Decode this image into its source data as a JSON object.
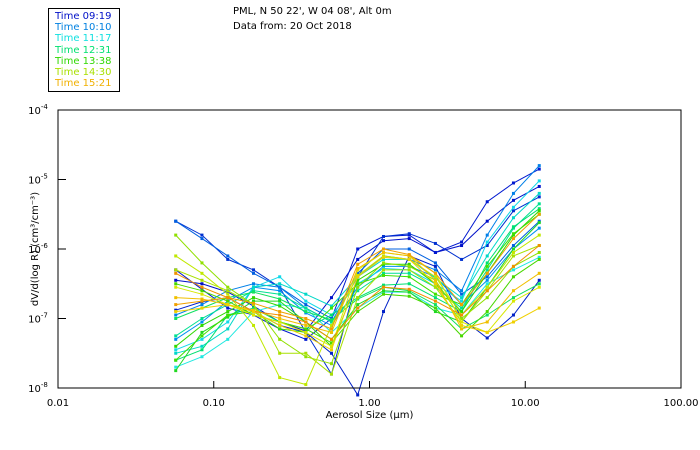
{
  "header": {
    "line1": "PML, N 50 22', W 04 08', Alt 0m",
    "line2": "Data from: 20 Oct 2018"
  },
  "legend": [
    {
      "label": "Time 09:19",
      "color": "#0010c8"
    },
    {
      "label": "Time 10:10",
      "color": "#0080e0"
    },
    {
      "label": "Time 11:17",
      "color": "#10e0e0"
    },
    {
      "label": "Time 12:31",
      "color": "#00e070"
    },
    {
      "label": "Time 13:38",
      "color": "#30d800"
    },
    {
      "label": "Time 14:30",
      "color": "#a8e000"
    },
    {
      "label": "Time 15:21",
      "color": "#f0b000"
    }
  ],
  "chart_data": {
    "type": "line",
    "title": "PML, N 50 22', W 04 08', Alt 0m",
    "subtitle": "Data from: 20 Oct 2018",
    "xlabel": "Aerosol Size (µm)",
    "ylabel": "dV/d(log R) (cm³/cm⁻³)",
    "xscale": "log",
    "yscale": "log",
    "xlim": [
      0.01,
      100
    ],
    "ylim": [
      1e-08,
      0.0001
    ],
    "xticks": [
      {
        "value": 0.01,
        "label": "0.01"
      },
      {
        "value": 0.1,
        "label": "0.10"
      },
      {
        "value": 1,
        "label": "1.00"
      },
      {
        "value": 10,
        "label": "10.00"
      },
      {
        "value": 100,
        "label": "100.00"
      }
    ],
    "yticks": [
      {
        "exp": -4,
        "label": "10",
        "sup": "-4"
      },
      {
        "exp": -5,
        "label": "10",
        "sup": "-5"
      },
      {
        "exp": -6,
        "label": "10",
        "sup": "-6"
      },
      {
        "exp": -7,
        "label": "10",
        "sup": "-7"
      },
      {
        "exp": -8,
        "label": "10",
        "sup": "-8"
      }
    ],
    "grid": false,
    "legend_position": "top-left-outside",
    "x": [
      0.057,
      0.084,
      0.123,
      0.18,
      0.265,
      0.39,
      0.57,
      0.84,
      1.23,
      1.8,
      2.65,
      3.9,
      5.7,
      8.4,
      12.3
    ],
    "y_note": "values are log10(dV/dlogR)",
    "series": [
      {
        "time": "09:19",
        "color": "#0010c8",
        "log_values": [
          -6.45,
          -6.5,
          -6.62,
          -6.82,
          -7.05,
          -7.18,
          -6.7,
          -6.15,
          -5.88,
          -5.85,
          -6.05,
          -5.95,
          -5.6,
          -5.3,
          -5.1
        ]
      },
      {
        "time": "09:19",
        "color": "#0018d0",
        "log_values": [
          -6.3,
          -6.58,
          -6.85,
          -6.95,
          -7.15,
          -7.3,
          -7.0,
          -6.0,
          -5.82,
          -5.8,
          -6.05,
          -5.9,
          -5.32,
          -5.05,
          -4.85
        ]
      },
      {
        "time": "09:19",
        "color": "#0020c8",
        "log_values": [
          -6.88,
          -6.76,
          -6.7,
          -6.9,
          -7.1,
          -7.2,
          -7.5,
          -8.1,
          -6.9,
          -6.1,
          -6.25,
          -7.0,
          -7.28,
          -6.95,
          -6.45
        ]
      },
      {
        "time": "09:19",
        "color": "#0030d0",
        "log_values": [
          -5.6,
          -5.8,
          -6.15,
          -6.3,
          -6.55,
          -7.2,
          -7.8,
          -6.4,
          -5.82,
          -5.78,
          -5.92,
          -6.15,
          -5.95,
          -5.45,
          -5.25
        ]
      },
      {
        "time": "10:10",
        "color": "#0060e0",
        "log_values": [
          -5.6,
          -5.85,
          -6.1,
          -6.35,
          -6.55,
          -6.8,
          -7.0,
          -6.35,
          -6.0,
          -6.0,
          -6.2,
          -6.65,
          -6.4,
          -5.95,
          -5.6
        ]
      },
      {
        "time": "10:10",
        "color": "#0080e8",
        "log_values": [
          -6.95,
          -6.8,
          -6.6,
          -6.5,
          -6.55,
          -6.85,
          -7.05,
          -6.4,
          -6.1,
          -6.15,
          -6.3,
          -6.6,
          -5.8,
          -5.2,
          -4.8
        ]
      },
      {
        "time": "10:10",
        "color": "#0090f0",
        "log_values": [
          -7.3,
          -7.05,
          -6.75,
          -6.55,
          -6.6,
          -6.92,
          -7.1,
          -6.55,
          -6.25,
          -6.25,
          -6.4,
          -6.8,
          -6.45,
          -6.0,
          -5.7
        ]
      },
      {
        "time": "11:17",
        "color": "#10d8e8",
        "log_values": [
          -7.45,
          -7.3,
          -7.05,
          -6.55,
          -6.4,
          -6.75,
          -6.95,
          -6.5,
          -6.28,
          -6.3,
          -6.5,
          -6.75,
          -5.9,
          -5.4,
          -5.02
        ]
      },
      {
        "time": "11:17",
        "color": "#20e8e0",
        "log_values": [
          -7.7,
          -7.55,
          -7.3,
          -6.9,
          -6.8,
          -6.85,
          -7.2,
          -6.85,
          -6.62,
          -6.62,
          -6.85,
          -6.95,
          -6.5,
          -6.3,
          -6.12
        ]
      },
      {
        "time": "11:17",
        "color": "#00d8c8",
        "log_values": [
          -7.5,
          -7.4,
          -7.15,
          -6.55,
          -6.5,
          -6.65,
          -6.82,
          -6.4,
          -6.15,
          -6.15,
          -6.42,
          -6.7,
          -6.1,
          -5.55,
          -5.2
        ]
      },
      {
        "time": "12:31",
        "color": "#00e090",
        "log_values": [
          -7.25,
          -7.0,
          -6.8,
          -6.6,
          -6.65,
          -6.85,
          -7.05,
          -6.6,
          -6.35,
          -6.35,
          -6.55,
          -6.85,
          -6.3,
          -5.7,
          -5.35
        ]
      },
      {
        "time": "12:31",
        "color": "#00e070",
        "log_values": [
          -7.6,
          -7.45,
          -6.95,
          -6.85,
          -7.05,
          -7.15,
          -6.95,
          -6.7,
          -6.52,
          -6.5,
          -6.7,
          -6.9,
          -6.2,
          -5.68,
          -5.42
        ]
      },
      {
        "time": "12:31",
        "color": "#10e060",
        "log_values": [
          -7.0,
          -6.85,
          -6.7,
          -6.62,
          -6.72,
          -6.9,
          -7.02,
          -6.72,
          -6.55,
          -6.6,
          -6.8,
          -7.15,
          -6.95,
          -6.7,
          -6.5
        ]
      },
      {
        "time": "13:38",
        "color": "#20d820",
        "log_values": [
          -7.75,
          -7.2,
          -6.98,
          -6.75,
          -6.75,
          -7.05,
          -7.3,
          -6.8,
          -6.6,
          -6.62,
          -6.9,
          -7.05,
          -6.55,
          -6.0,
          -5.62
        ]
      },
      {
        "time": "13:38",
        "color": "#30d800",
        "log_values": [
          -7.4,
          -7.1,
          -6.9,
          -6.7,
          -6.82,
          -7.05,
          -7.4,
          -6.45,
          -6.22,
          -6.22,
          -6.5,
          -6.9,
          -6.35,
          -5.8,
          -5.45
        ]
      },
      {
        "time": "13:38",
        "color": "#48d800",
        "log_values": [
          -6.5,
          -6.6,
          -6.75,
          -6.95,
          -7.05,
          -7.15,
          -7.35,
          -6.9,
          -6.65,
          -6.68,
          -6.85,
          -7.25,
          -6.9,
          -6.4,
          -6.15
        ]
      },
      {
        "time": "13:38",
        "color": "#40e000",
        "log_values": [
          -7.6,
          -7.25,
          -6.95,
          -6.9,
          -7.15,
          -7.2,
          -6.85,
          -6.5,
          -6.38,
          -6.4,
          -6.65,
          -6.8,
          -6.25,
          -5.78,
          -5.5
        ]
      },
      {
        "time": "14:30",
        "color": "#90e000",
        "log_values": [
          -5.8,
          -6.2,
          -6.55,
          -6.8,
          -7.3,
          -7.55,
          -7.65,
          -6.55,
          -6.2,
          -6.25,
          -6.45,
          -7.0,
          -6.7,
          -6.25,
          -6.05
        ]
      },
      {
        "time": "14:30",
        "color": "#a8e000",
        "log_values": [
          -6.3,
          -6.45,
          -6.6,
          -6.8,
          -7.5,
          -7.5,
          -7.8,
          -6.7,
          -6.3,
          -6.3,
          -6.55,
          -7.05,
          -6.6,
          -6.1,
          -5.95
        ]
      },
      {
        "time": "14:30",
        "color": "#c0e800",
        "log_values": [
          -6.1,
          -6.35,
          -6.65,
          -7.1,
          -7.85,
          -7.95,
          -7.1,
          -6.38,
          -6.1,
          -6.15,
          -6.4,
          -6.95,
          -6.55,
          -6.05,
          -5.8
        ]
      },
      {
        "time": "14:30",
        "color": "#d8e800",
        "log_values": [
          -6.55,
          -6.65,
          -6.8,
          -6.95,
          -7.05,
          -7.2,
          -7.4,
          -6.3,
          -6.05,
          -6.1,
          -6.35,
          -7.05,
          -7.2,
          -6.75,
          -6.55
        ]
      },
      {
        "time": "15:21",
        "color": "#f0c000",
        "log_values": [
          -6.7,
          -6.72,
          -6.8,
          -6.88,
          -7.0,
          -7.1,
          -7.2,
          -6.28,
          -6.05,
          -6.1,
          -6.45,
          -7.15,
          -7.05,
          -6.6,
          -6.35
        ]
      },
      {
        "time": "15:21",
        "color": "#f0a000",
        "log_values": [
          -6.8,
          -6.75,
          -6.7,
          -6.78,
          -6.9,
          -7.0,
          -7.15,
          -6.22,
          -6.0,
          -6.08,
          -6.35,
          -6.8,
          -6.35,
          -5.85,
          -5.5
        ]
      },
      {
        "time": "15:21",
        "color": "#f09000",
        "log_values": [
          -6.35,
          -6.55,
          -6.7,
          -6.9,
          -6.95,
          -7.05,
          -7.3,
          -6.85,
          -6.55,
          -6.58,
          -6.75,
          -6.95,
          -6.6,
          -6.25,
          -5.95
        ]
      },
      {
        "time": "15:21",
        "color": "#f0d000",
        "log_values": [
          -6.9,
          -6.85,
          -6.8,
          -6.9,
          -7.1,
          -7.25,
          -7.45,
          -6.4,
          -6.12,
          -6.15,
          -6.5,
          -7.1,
          -7.2,
          -7.05,
          -6.85
        ]
      }
    ]
  }
}
